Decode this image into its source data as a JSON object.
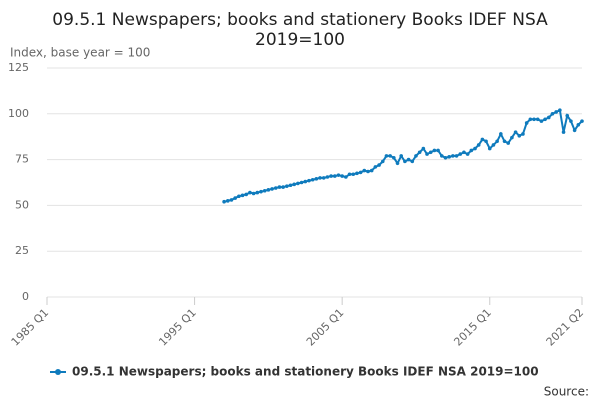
{
  "chart_data": {
    "type": "line",
    "title": [
      "09.5.1 Newspapers; books and stationery Books IDEF NSA",
      "2019=100"
    ],
    "y_label": "Index, base year = 100",
    "source": "Source:",
    "xlim": [
      1985,
      2021.25
    ],
    "xticks": [
      {
        "value": 1985,
        "label": "1985 Q1"
      },
      {
        "value": 1995,
        "label": "1995 Q1"
      },
      {
        "value": 2005,
        "label": "2005 Q1"
      },
      {
        "value": 2015,
        "label": "2015 Q1"
      },
      {
        "value": 2021.25,
        "label": "2021 Q2"
      }
    ],
    "ylim": [
      0,
      125
    ],
    "yticks": [
      0,
      25,
      50,
      75,
      100,
      125
    ],
    "grid": true,
    "legend": "bottom",
    "x": [
      1997,
      1997.25,
      1997.5,
      1997.75,
      1998,
      1998.25,
      1998.5,
      1998.75,
      1999,
      1999.25,
      1999.5,
      1999.75,
      2000,
      2000.25,
      2000.5,
      2000.75,
      2001,
      2001.25,
      2001.5,
      2001.75,
      2002,
      2002.25,
      2002.5,
      2002.75,
      2003,
      2003.25,
      2003.5,
      2003.75,
      2004,
      2004.25,
      2004.5,
      2004.75,
      2005,
      2005.25,
      2005.5,
      2005.75,
      2006,
      2006.25,
      2006.5,
      2006.75,
      2007,
      2007.25,
      2007.5,
      2007.75,
      2008,
      2008.25,
      2008.5,
      2008.75,
      2009,
      2009.25,
      2009.5,
      2009.75,
      2010,
      2010.25,
      2010.5,
      2010.75,
      2011,
      2011.25,
      2011.5,
      2011.75,
      2012,
      2012.25,
      2012.5,
      2012.75,
      2013,
      2013.25,
      2013.5,
      2013.75,
      2014,
      2014.25,
      2014.5,
      2014.75,
      2015,
      2015.25,
      2015.5,
      2015.75,
      2016,
      2016.25,
      2016.5,
      2016.75,
      2017,
      2017.25,
      2017.5,
      2017.75,
      2018,
      2018.25,
      2018.5,
      2018.75,
      2019,
      2019.25,
      2019.5,
      2019.75,
      2020,
      2020.25,
      2020.5,
      2020.75,
      2021,
      2021.25
    ],
    "series": [
      {
        "name": "09.5.1 Newspapers; books and stationery Books IDEF NSA 2019=100",
        "color": "#0f7bbd",
        "values": [
          52,
          52.5,
          53,
          54,
          55,
          55.5,
          56,
          57,
          56.5,
          57,
          57.5,
          58,
          58.5,
          59,
          59.5,
          60,
          60,
          60.5,
          61,
          61.5,
          62,
          62.5,
          63,
          63.5,
          64,
          64.5,
          65,
          65,
          65.5,
          66,
          66,
          66.5,
          66,
          65.5,
          67,
          67,
          67.5,
          68,
          69,
          68.5,
          69,
          71,
          72,
          74,
          77,
          77,
          76,
          73,
          77,
          74,
          75,
          74,
          77,
          79,
          81,
          78,
          79,
          80,
          80,
          77,
          76,
          76.5,
          77,
          77,
          78,
          79,
          78,
          80,
          81,
          83,
          86,
          85,
          81,
          83,
          85,
          89,
          85,
          84,
          87,
          90,
          88,
          89,
          95,
          97,
          97,
          97,
          96,
          97,
          98,
          100,
          101,
          102,
          90,
          99,
          96,
          91,
          94,
          96
        ]
      }
    ]
  }
}
